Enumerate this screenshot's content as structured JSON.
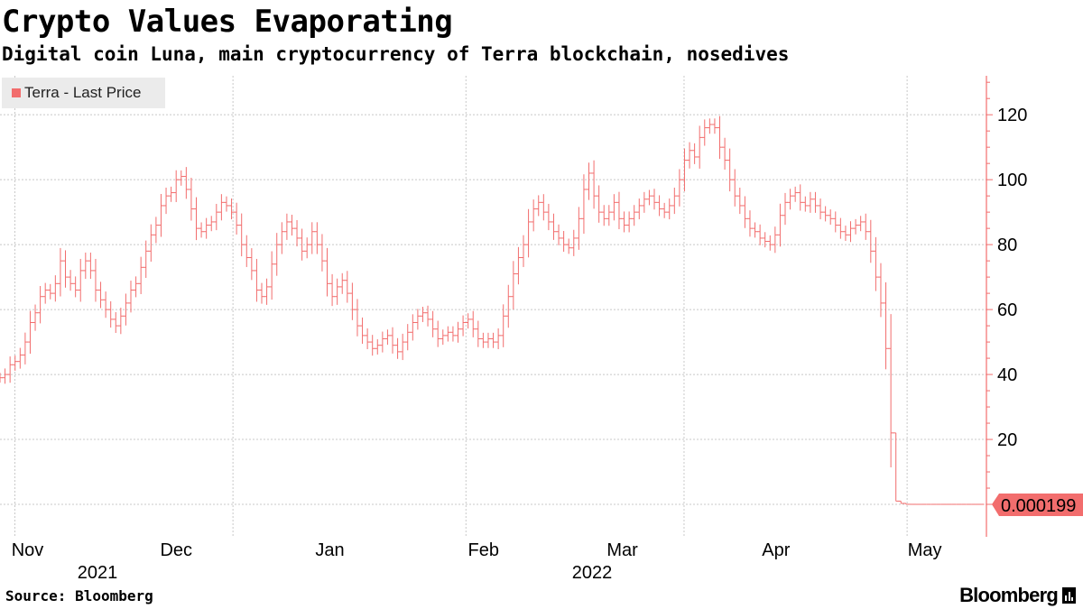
{
  "header": {
    "title": "Crypto Values Evaporating",
    "subtitle": "Digital coin Luna, main cryptocurrency of Terra blockchain, nosedives"
  },
  "footer": {
    "source": "Source: Bloomberg",
    "logo_text": "Bloomberg"
  },
  "colors": {
    "series": "#f26d6d",
    "grid": "#c8c8c8",
    "axis": "#f26d6d",
    "badge": "#f26d6d"
  },
  "chart_data": {
    "type": "line",
    "style": "ohlc-bars",
    "series": [
      {
        "name": "Terra - Last Price",
        "last_label": "0.000199",
        "values": [
          39,
          40,
          43,
          44,
          46,
          50,
          56,
          59,
          64,
          66,
          65,
          68,
          75,
          70,
          68,
          66,
          72,
          75,
          72,
          66,
          63,
          60,
          57,
          55,
          58,
          62,
          66,
          68,
          73,
          78,
          83,
          86,
          92,
          95,
          96,
          100,
          101,
          97,
          91,
          85,
          84,
          86,
          87,
          90,
          93,
          92,
          90,
          86,
          80,
          76,
          72,
          66,
          64,
          67,
          74,
          80,
          84,
          87,
          85,
          82,
          78,
          80,
          84,
          80,
          75,
          68,
          64,
          67,
          69,
          65,
          60,
          55,
          52,
          50,
          48,
          49,
          51,
          52,
          49,
          47,
          50,
          53,
          56,
          58,
          59,
          57,
          54,
          51,
          52,
          53,
          52,
          54,
          56,
          57,
          54,
          51,
          50,
          51,
          50,
          52,
          58,
          64,
          71,
          76,
          80,
          87,
          91,
          93,
          90,
          87,
          84,
          82,
          80,
          79,
          82,
          88,
          97,
          102,
          95,
          90,
          88,
          90,
          93,
          88,
          86,
          88,
          90,
          92,
          94,
          95,
          93,
          91,
          90,
          92,
          95,
          100,
          106,
          109,
          107,
          113,
          116,
          117,
          116,
          110,
          106,
          100,
          95,
          92,
          88,
          85,
          84,
          82,
          81,
          80,
          83,
          89,
          93,
          95,
          96,
          93,
          92,
          94,
          92,
          90,
          89,
          88,
          86,
          84,
          83,
          85,
          86,
          87,
          84,
          78,
          70,
          62,
          48,
          22,
          1,
          0.3,
          0.02,
          0.01,
          0.0005,
          0.0003,
          0.0002,
          0.0002,
          0.0002,
          0.0002,
          0.0002,
          0.0002,
          0.0002,
          0.0002,
          0.0002,
          0.0002,
          0.0002,
          0.000199
        ]
      }
    ],
    "x_start": "2021-10-29",
    "x_end": "2022-05-16",
    "x_month_labels": [
      {
        "label": "Nov",
        "year": "2021",
        "date": "2021-11-01"
      },
      {
        "label": "Dec",
        "date": "2021-12-01"
      },
      {
        "label": "Jan",
        "date": "2022-01-01"
      },
      {
        "label": "Feb",
        "year": "2022",
        "date": "2022-02-01"
      },
      {
        "label": "Mar",
        "date": "2022-03-01"
      },
      {
        "label": "Apr",
        "date": "2022-04-01"
      },
      {
        "label": "May",
        "date": "2022-05-01"
      }
    ],
    "x_gridline_dates": [
      "2021-11-01",
      "2021-12-15",
      "2022-01-31",
      "2022-03-16",
      "2022-04-30"
    ],
    "y_ticks": [
      20,
      40,
      60,
      80,
      100,
      120
    ],
    "ylim": [
      -10,
      132
    ],
    "grid": true,
    "legend": "top-left",
    "y_axis_position": "right"
  }
}
